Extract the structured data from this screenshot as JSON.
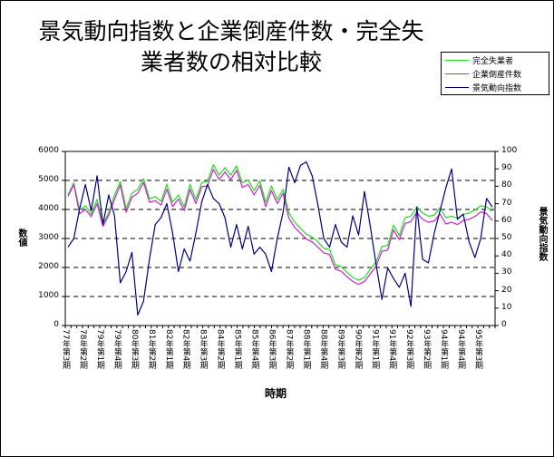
{
  "chart_data": {
    "type": "line",
    "title": "景気動向指数と企業倒産件数・完全失業者数の相対比較",
    "title_lines": [
      "景気動向指数と企業倒産件数・完全失",
      "業者数の相対比較"
    ],
    "xlabel": "時期",
    "ylabel": "数値",
    "y2label": "景気動向指数",
    "ylim": [
      0,
      6000
    ],
    "y2lim": [
      0,
      100
    ],
    "yticks": [
      "0",
      "1000",
      "2000",
      "3000",
      "4000",
      "5000",
      "6000"
    ],
    "y2ticks": [
      "0",
      "10",
      "20",
      "30",
      "40",
      "50",
      "60",
      "70",
      "80",
      "90",
      "100"
    ],
    "grid": "dashed horizontal",
    "legend_position": "top-right",
    "x_tick_labels": [
      "77年第3期",
      "78年第2期",
      "79年第1期",
      "79年第4期",
      "80年第3期",
      "81年第2期",
      "82年第1期",
      "82年第4期",
      "83年第3期",
      "84年第2期",
      "85年第1期",
      "85年第4期",
      "86年第3期",
      "87年第2期",
      "88年第1期",
      "88年第4期",
      "89年第3期",
      "90年第2期",
      "91年第1期",
      "91年第4期",
      "92年第3期",
      "93年第2期",
      "94年第1期",
      "94年第4期",
      "95年第3期"
    ],
    "series": [
      {
        "name": "完全失業者",
        "axis": "left",
        "color": "#22dd22",
        "values": [
          4500,
          4920,
          3980,
          4130,
          3840,
          4340,
          3500,
          3880,
          4500,
          4970,
          4030,
          4560,
          4690,
          5060,
          4370,
          4440,
          4280,
          4870,
          4250,
          4500,
          4090,
          4870,
          4340,
          4920,
          4970,
          5540,
          5180,
          5440,
          5180,
          5500,
          4920,
          5020,
          4650,
          4990,
          4250,
          4810,
          4340,
          4690,
          3880,
          3560,
          3350,
          3150,
          3050,
          2880,
          2660,
          2620,
          2090,
          2030,
          1830,
          1660,
          1560,
          1660,
          1930,
          2190,
          2720,
          2770,
          3460,
          3100,
          3720,
          3770,
          4090,
          3880,
          3770,
          3800,
          4060,
          3720,
          3770,
          3700,
          3830,
          3880,
          3980,
          4130,
          4090,
          3930
        ]
      },
      {
        "name": "企業倒産件数",
        "axis": "left",
        "color": "#cc22cc",
        "values": [
          4450,
          4850,
          3850,
          4000,
          3750,
          4200,
          3420,
          3800,
          4350,
          4850,
          3900,
          4420,
          4560,
          4930,
          4250,
          4300,
          4150,
          4700,
          4100,
          4360,
          3960,
          4700,
          4200,
          4780,
          4820,
          5380,
          5030,
          5290,
          5030,
          5350,
          4760,
          4860,
          4500,
          4830,
          4100,
          4650,
          4200,
          4560,
          3700,
          3380,
          3180,
          2980,
          2880,
          2700,
          2500,
          2450,
          1940,
          1870,
          1680,
          1520,
          1420,
          1520,
          1780,
          2040,
          2560,
          2600,
          3300,
          2960,
          3520,
          3580,
          3900,
          3660,
          3560,
          3600,
          3850,
          3500,
          3560,
          3480,
          3620,
          3660,
          3760,
          3920,
          3860,
          3620
        ]
      },
      {
        "name": "景気動向指数",
        "axis": "right",
        "color": "#000080",
        "values": [
          45,
          50,
          67,
          81,
          66,
          86,
          58,
          75,
          63,
          24.5,
          31,
          42,
          6,
          14,
          38,
          58,
          62,
          70,
          53,
          31,
          44,
          37,
          53,
          71,
          81,
          73,
          70,
          62,
          45,
          58,
          44,
          57,
          41,
          45,
          41,
          31,
          50,
          65,
          91,
          82,
          92,
          94,
          86,
          69,
          50,
          45,
          58,
          48,
          45,
          63,
          52,
          77,
          57,
          35,
          15,
          33,
          27,
          22,
          30,
          11,
          68,
          38,
          36,
          53,
          66,
          79,
          90,
          61,
          64,
          48,
          39,
          50,
          73,
          68
        ]
      }
    ]
  }
}
